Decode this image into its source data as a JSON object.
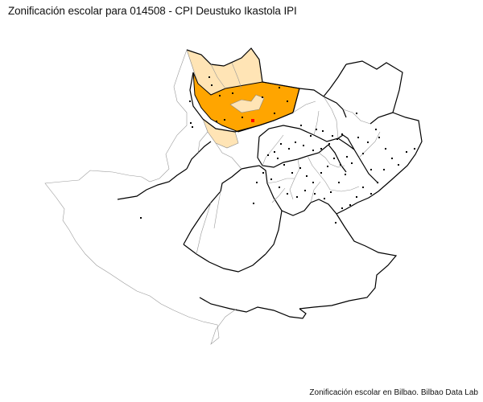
{
  "title": "Zonificación escolar para 014508 - CPI Deustuko Ikastola IPI",
  "caption": "Zonificación escolar en Bilbao. Bilbao Data Lab",
  "colors": {
    "zone_primary": "#FFA500",
    "zone_secondary": "#FFE4B5",
    "school_marker": "#FF0000",
    "district_line": "#000000",
    "section_line": "#999999",
    "point": "#000000"
  },
  "map_layers": [
    "district-boundaries",
    "census-section-boundaries",
    "highlighted-zone",
    "adjacent-zone",
    "school-points",
    "selected-school"
  ]
}
